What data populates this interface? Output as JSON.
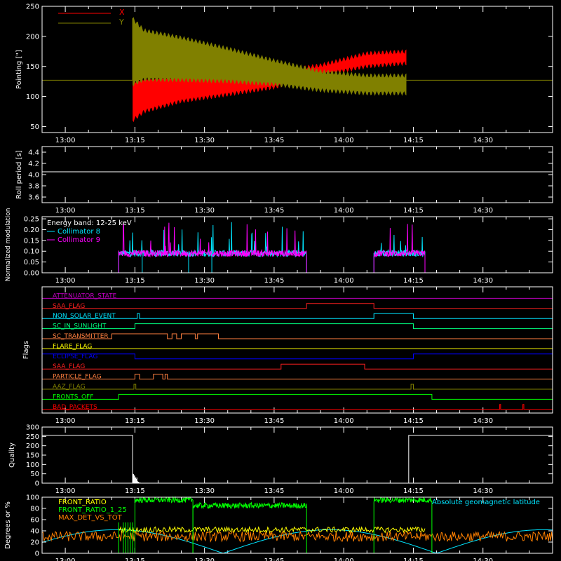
{
  "colors": {
    "background": "#000000",
    "axis": "#ffffff",
    "x_series": "#ff0000",
    "y_series": "#808000",
    "collimator_8": "#00e5ff",
    "collimator_9": "#ff00ff",
    "front_ratio": "#ffff00",
    "front_ratio_1_25": "#00ff00",
    "max_det_vs_tot": "#ff8000",
    "geomagnetic_latitude": "#00e5ff"
  },
  "time_axis": {
    "start_minutes": 775,
    "end_minutes": 885,
    "ticks": [
      "13:00",
      "13:15",
      "13:30",
      "13:45",
      "14:00",
      "14:15",
      "14:30"
    ],
    "tick_minutes": [
      780,
      795,
      810,
      825,
      840,
      855,
      870
    ]
  },
  "chart_data": [
    {
      "id": "pointing",
      "type": "line",
      "ylabel": "Pointing [\"]",
      "ylim": [
        40,
        250
      ],
      "yticks": [
        "50",
        "100",
        "150",
        "200",
        "250"
      ],
      "ytick_values": [
        50,
        100,
        150,
        200,
        250
      ],
      "legend": [
        {
          "label": "X",
          "color": "#ff0000"
        },
        {
          "label": "Y",
          "color": "#808000"
        }
      ],
      "baseline_value": 127,
      "x_envelope": {
        "minutes": [
          794.5,
          797,
          805,
          815,
          825,
          835,
          845,
          853.5
        ],
        "upper": [
          125,
          130,
          134,
          138,
          142,
          152,
          172,
          175
        ],
        "lower": [
          60,
          75,
          92,
          103,
          115,
          135,
          150,
          155
        ]
      },
      "y_envelope": {
        "minutes": [
          794.5,
          797,
          805,
          815,
          825,
          835,
          845,
          853.5
        ],
        "upper": [
          230,
          210,
          198,
          180,
          160,
          142,
          135,
          135
        ],
        "lower": [
          120,
          128,
          127,
          125,
          120,
          110,
          105,
          105
        ]
      }
    },
    {
      "id": "roll-period",
      "type": "line",
      "ylabel": "Roll period [s]",
      "ylim": [
        3.5,
        4.5
      ],
      "yticks": [
        "3.6",
        "3.8",
        "4.0",
        "4.2",
        "4.4"
      ],
      "ytick_values": [
        3.6,
        3.8,
        4.0,
        4.2,
        4.4
      ],
      "value": 4.05
    },
    {
      "id": "modulation",
      "type": "line",
      "ylabel": "Normalized modulation",
      "ylim": [
        0,
        0.26
      ],
      "yticks": [
        "0.00",
        "0.05",
        "0.10",
        "0.15",
        "0.20",
        "0.25"
      ],
      "ytick_values": [
        0,
        0.05,
        0.1,
        0.15,
        0.2,
        0.25
      ],
      "legend_title": "Energy band: 12-25 keV",
      "series": [
        {
          "name": "Collimator 8",
          "color": "#00e5ff"
        },
        {
          "name": "Collimator 9",
          "color": "#ff00ff"
        }
      ],
      "active_intervals": [
        [
          791.5,
          832
        ],
        [
          846.5,
          857.5
        ]
      ],
      "typical_level": 0.09
    },
    {
      "id": "flags",
      "type": "step",
      "ylabel": "Flags",
      "flags": [
        {
          "label": "ATTENUATOR_STATE",
          "color": "#c000c0",
          "steps": []
        },
        {
          "label": "SAA_FLAG",
          "color": "#ff2020",
          "steps": [
            [
              832,
              846.5
            ]
          ]
        },
        {
          "label": "NON_SOLAR_EVENT",
          "color": "#00e5ff",
          "steps": [
            [
              795.5,
              796
            ],
            [
              846.5,
              855
            ]
          ]
        },
        {
          "label": "SC_IN_SUNLIGHT",
          "color": "#00ff80",
          "steps": [
            [
              795,
              855
            ]
          ]
        },
        {
          "label": "SC_TRANSMITTER",
          "color": "#ff8040",
          "steps": [
            [
              790,
              802
            ],
            [
              803,
              804
            ],
            [
              805,
              808
            ],
            [
              808.5,
              813
            ]
          ]
        },
        {
          "label": "FLARE_FLAG",
          "color": "#ffff00",
          "steps": []
        },
        {
          "label": "ECLIPSE_FLAG",
          "color": "#0000ff",
          "steps": [
            [
              775,
              795
            ],
            [
              855,
              885
            ]
          ]
        },
        {
          "label": "SAA_FLAG",
          "color": "#ff2020",
          "steps": [
            [
              826.5,
              844.5
            ]
          ]
        },
        {
          "label": "PARTICLE_FLAG",
          "color": "#ff8040",
          "steps": [
            [
              795,
              796
            ],
            [
              799,
              801
            ],
            [
              801.5,
              802
            ]
          ]
        },
        {
          "label": "AAZ_FLAG",
          "color": "#808000",
          "steps": [
            [
              794.8,
              795.2
            ],
            [
              854.5,
              855
            ]
          ]
        },
        {
          "label": "FRONTS_OFF",
          "color": "#00ff00",
          "steps": [
            [
              791.5,
              859
            ]
          ]
        },
        {
          "label": "BAD_PACKETS",
          "color": "#ff0000",
          "steps": [
            [
              873.6,
              873.8
            ],
            [
              878.6,
              878.8
            ]
          ]
        }
      ]
    },
    {
      "id": "quality",
      "type": "line",
      "ylabel": "Quality",
      "ylim": [
        0,
        300
      ],
      "yticks": [
        "0",
        "50",
        "100",
        "150",
        "200",
        "250",
        "300"
      ],
      "ytick_values": [
        0,
        50,
        100,
        150,
        200,
        250,
        300
      ],
      "intervals": [
        {
          "from": 775,
          "to": 794.5,
          "value": 256
        },
        {
          "from": 854,
          "to": 885,
          "value": 256
        }
      ]
    },
    {
      "id": "degrees",
      "type": "line",
      "ylabel": "Degrees or %",
      "ylim": [
        0,
        100
      ],
      "yticks": [
        "0",
        "20",
        "40",
        "60",
        "80",
        "100"
      ],
      "ytick_values": [
        0,
        20,
        40,
        60,
        80,
        100
      ],
      "series": [
        {
          "name": "FRONT_RATIO",
          "color": "#ffff00"
        },
        {
          "name": "FRONT_RATIO_1_25",
          "color": "#00ff00"
        },
        {
          "name": "MAX_DET_VS_TOT",
          "color": "#ff8000"
        },
        {
          "name": "Absolute geomagnetic latitude",
          "color": "#00e5ff"
        }
      ]
    }
  ]
}
